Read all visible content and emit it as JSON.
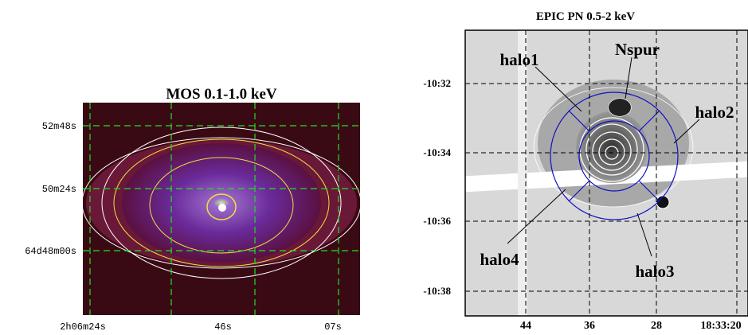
{
  "panels": [
    {
      "title": "MOS 0.1-1.0 keV",
      "yticks": [
        "52m48s",
        "50m24s",
        "64d48m00s"
      ],
      "xticks": [
        "2h06m24s",
        "46s",
        "07s"
      ]
    },
    {
      "title": "EPIC PN 0.5-2 keV",
      "yticks": [
        "-10:32",
        "-10:34",
        "-10:36",
        "-10:38"
      ],
      "xticks": [
        "44",
        "36",
        "28",
        "18:33:20"
      ],
      "annotations": [
        "halo1",
        "Nspur",
        "halo2",
        "halo4",
        "halo3"
      ]
    }
  ]
}
